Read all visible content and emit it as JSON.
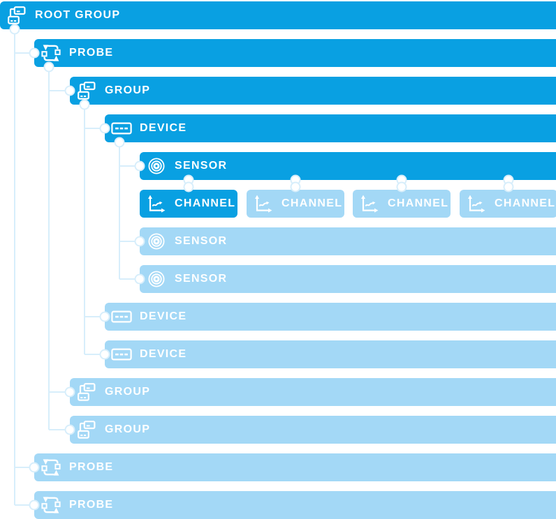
{
  "palette": {
    "active_blue": "#09a0e2",
    "inactive_blue": "#a3d8f6",
    "connector": "#d7eefb",
    "dot": "#ffffff",
    "label_text": "#ffffff",
    "background": "#ffffff"
  },
  "diagram": {
    "kind": "object-hierarchy-tree",
    "nodes": [
      {
        "id": "root-group",
        "label": "ROOT GROUP",
        "icon": "group-icon",
        "state": "highlighted",
        "depth": 0,
        "row": 0,
        "parent": null
      },
      {
        "id": "probe-1",
        "label": "PROBE",
        "icon": "probe-icon",
        "state": "highlighted",
        "depth": 1,
        "row": 1,
        "parent": "root-group"
      },
      {
        "id": "group-1",
        "label": "GROUP",
        "icon": "group-icon",
        "state": "highlighted",
        "depth": 2,
        "row": 2,
        "parent": "probe-1"
      },
      {
        "id": "device-1",
        "label": "DEVICE",
        "icon": "device-icon",
        "state": "highlighted",
        "depth": 3,
        "row": 3,
        "parent": "group-1"
      },
      {
        "id": "sensor-1",
        "label": "SENSOR",
        "icon": "sensor-icon",
        "state": "highlighted",
        "depth": 4,
        "row": 4,
        "parent": "device-1"
      },
      {
        "id": "channel-1",
        "label": "CHANNEL",
        "icon": "channel-icon",
        "state": "highlighted",
        "depth": 4,
        "row": 5,
        "col": 0,
        "parent": "sensor-1"
      },
      {
        "id": "channel-2",
        "label": "CHANNEL",
        "icon": "channel-icon",
        "state": "dimmed",
        "depth": 4,
        "row": 5,
        "col": 1,
        "parent": "sensor-1"
      },
      {
        "id": "channel-3",
        "label": "CHANNEL",
        "icon": "channel-icon",
        "state": "dimmed",
        "depth": 4,
        "row": 5,
        "col": 2,
        "parent": "sensor-1"
      },
      {
        "id": "channel-4",
        "label": "CHANNEL",
        "icon": "channel-icon",
        "state": "dimmed",
        "depth": 4,
        "row": 5,
        "col": 3,
        "parent": "sensor-1"
      },
      {
        "id": "sensor-2",
        "label": "SENSOR",
        "icon": "sensor-icon",
        "state": "dimmed",
        "depth": 4,
        "row": 6,
        "parent": "device-1"
      },
      {
        "id": "sensor-3",
        "label": "SENSOR",
        "icon": "sensor-icon",
        "state": "dimmed",
        "depth": 4,
        "row": 7,
        "parent": "device-1"
      },
      {
        "id": "device-2",
        "label": "DEVICE",
        "icon": "device-icon",
        "state": "dimmed",
        "depth": 3,
        "row": 8,
        "parent": "group-1"
      },
      {
        "id": "device-3",
        "label": "DEVICE",
        "icon": "device-icon",
        "state": "dimmed",
        "depth": 3,
        "row": 9,
        "parent": "group-1"
      },
      {
        "id": "group-2",
        "label": "GROUP",
        "icon": "group-icon",
        "state": "dimmed",
        "depth": 2,
        "row": 10,
        "parent": "probe-1"
      },
      {
        "id": "group-3",
        "label": "GROUP",
        "icon": "group-icon",
        "state": "dimmed",
        "depth": 2,
        "row": 11,
        "parent": "probe-1"
      },
      {
        "id": "probe-2",
        "label": "PROBE",
        "icon": "probe-icon",
        "state": "dimmed",
        "depth": 1,
        "row": 12,
        "parent": "root-group"
      },
      {
        "id": "probe-3",
        "label": "PROBE",
        "icon": "probe-icon",
        "state": "dimmed",
        "depth": 1,
        "row": 13,
        "parent": "root-group"
      }
    ]
  }
}
